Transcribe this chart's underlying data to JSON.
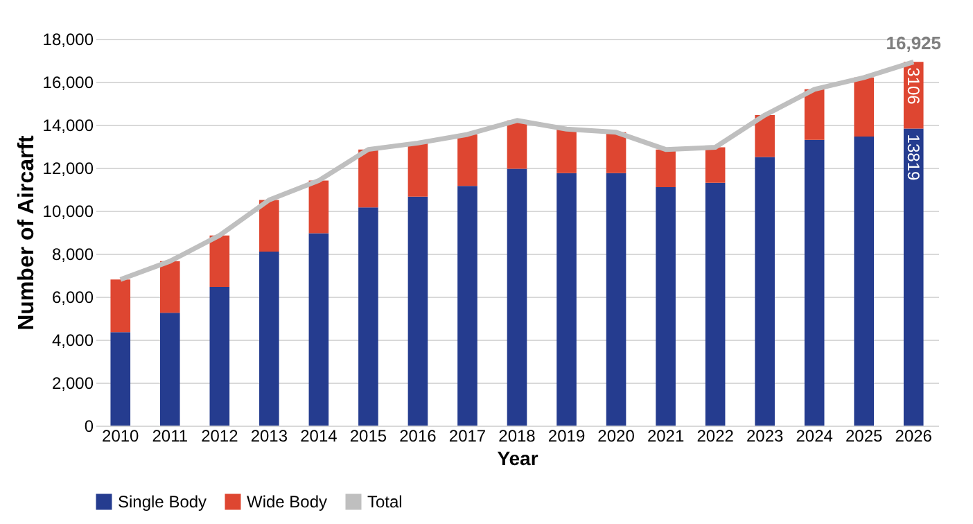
{
  "chart_data": {
    "type": "bar",
    "stacked": true,
    "xlabel": "Year",
    "ylabel": "Number of Aircarft",
    "categories": [
      "2010",
      "2011",
      "2012",
      "2013",
      "2014",
      "2015",
      "2016",
      "2017",
      "2018",
      "2019",
      "2020",
      "2021",
      "2022",
      "2023",
      "2024",
      "2025",
      "2026"
    ],
    "series": [
      {
        "name": "Single Body",
        "color": "#253c8f",
        "values": [
          4350,
          5250,
          6450,
          8100,
          8950,
          10150,
          10650,
          11150,
          11950,
          11750,
          11750,
          11100,
          11300,
          12500,
          13300,
          13450,
          13819
        ],
        "value_labels": [
          null,
          null,
          null,
          null,
          null,
          null,
          null,
          null,
          null,
          null,
          null,
          null,
          null,
          null,
          null,
          null,
          "13819"
        ]
      },
      {
        "name": "Wide Body",
        "color": "#de4631",
        "values": [
          2450,
          2400,
          2400,
          2400,
          2450,
          2700,
          2500,
          2400,
          2250,
          2050,
          1900,
          1750,
          1650,
          1950,
          2350,
          2750,
          3106
        ],
        "value_labels": [
          null,
          null,
          null,
          null,
          null,
          null,
          null,
          null,
          null,
          null,
          null,
          null,
          null,
          null,
          null,
          null,
          "3106"
        ]
      },
      {
        "name": "Total",
        "type": "line",
        "color": "#bfbfbf",
        "values": [
          6800,
          7650,
          8850,
          10500,
          11400,
          12850,
          13150,
          13550,
          14200,
          13800,
          13650,
          12850,
          12950,
          14450,
          15650,
          16200,
          16925
        ],
        "value_labels": [
          null,
          null,
          null,
          null,
          null,
          null,
          null,
          null,
          null,
          null,
          null,
          null,
          null,
          null,
          null,
          null,
          "16,925"
        ]
      }
    ],
    "ylim": [
      0,
      18000
    ],
    "yticks": [
      0,
      {
        "value": 2000,
        "label": "2,000"
      },
      {
        "value": 4000,
        "label": "4,000"
      },
      {
        "value": 6000,
        "label": "6,000"
      },
      {
        "value": 8000,
        "label": "8,000"
      },
      {
        "value": 10000,
        "label": "10,000"
      },
      {
        "value": 12000,
        "label": "12,000"
      },
      {
        "value": 14000,
        "label": "14,000"
      },
      {
        "value": 16000,
        "label": "16,000"
      },
      {
        "value": 18000,
        "label": "18,000"
      }
    ],
    "grid": "y",
    "legend": "bottom"
  }
}
